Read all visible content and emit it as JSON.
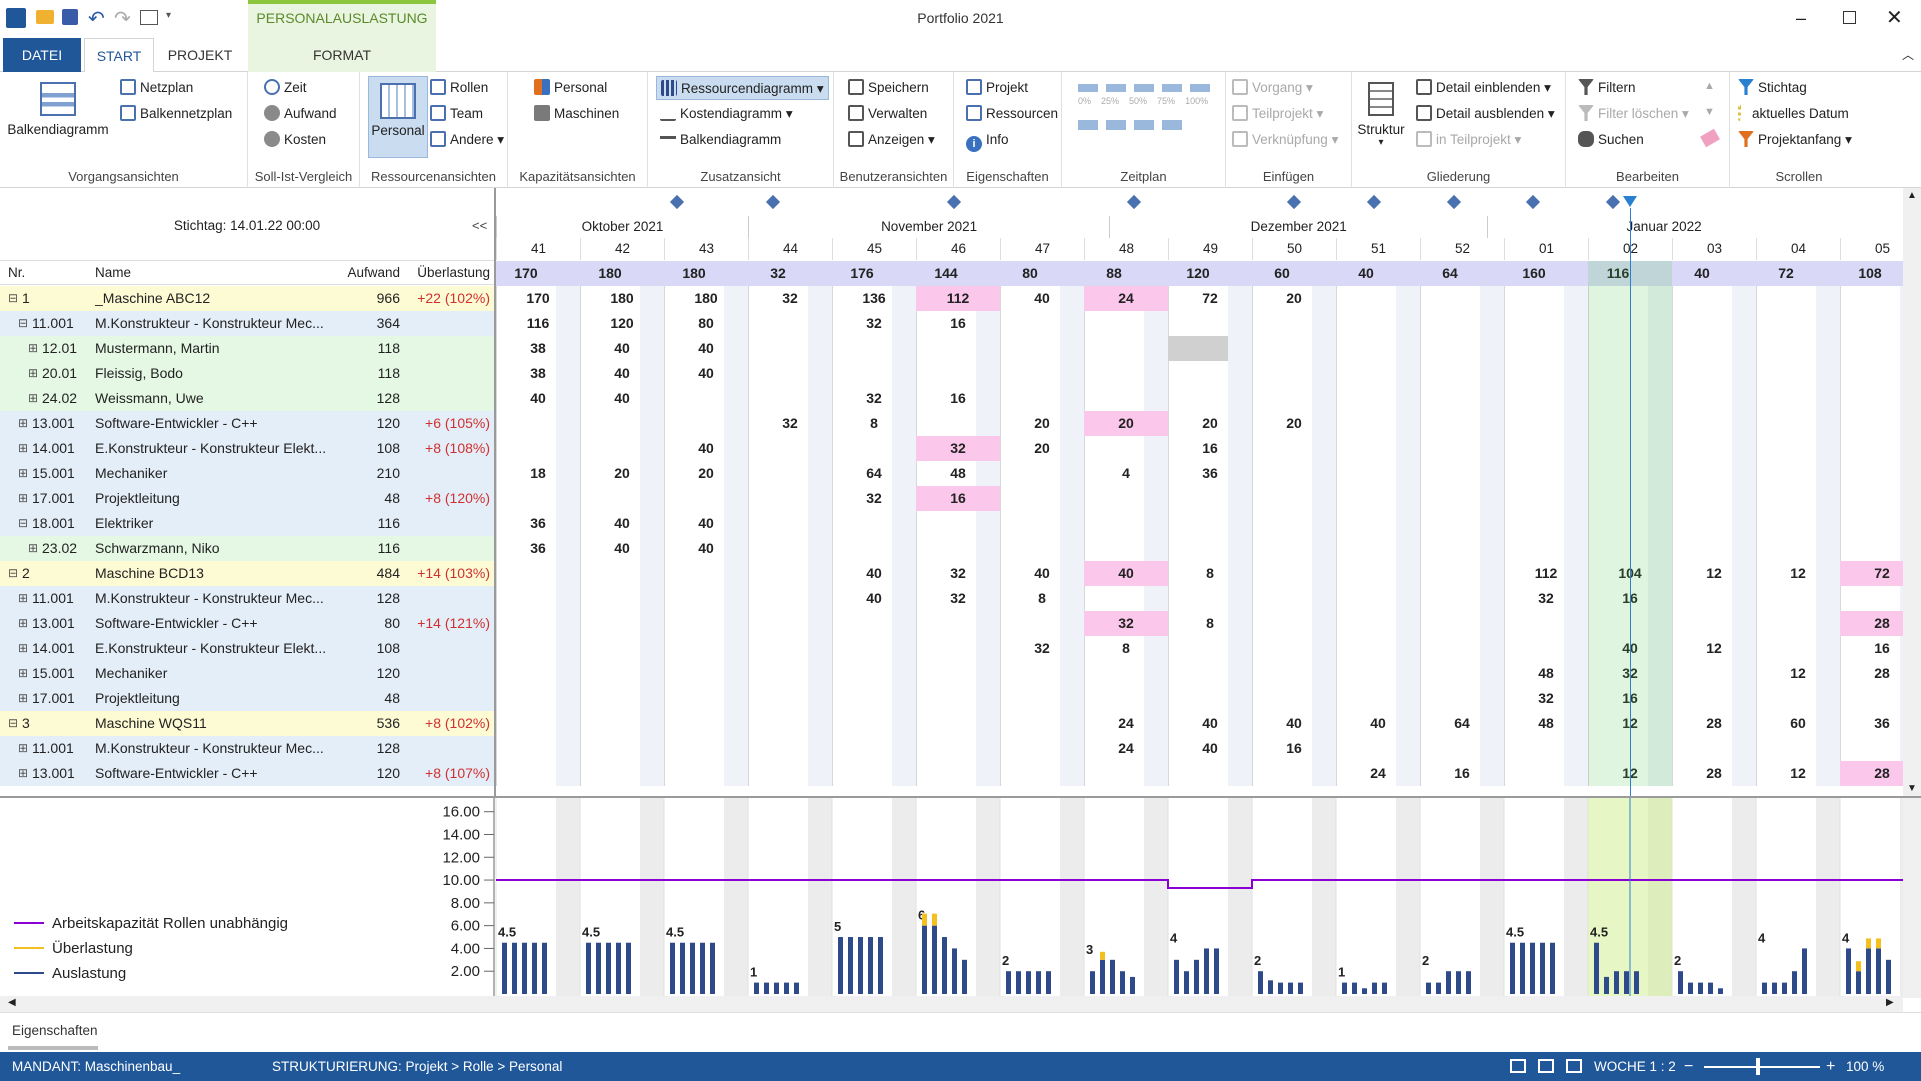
{
  "window": {
    "title": "Portfolio 2021",
    "context_tab": "PERSONALAUSLASTUNG"
  },
  "tabs": [
    {
      "label": "DATEI"
    },
    {
      "label": "START"
    },
    {
      "label": "PROJEKT"
    },
    {
      "label": "FORMAT"
    }
  ],
  "ribbon": {
    "vorgang": {
      "big": "Balkendiagramm",
      "items": [
        "Netzplan",
        "Balkennetzplan"
      ],
      "label": "Vorgangsansichten"
    },
    "sollist": {
      "items": [
        "Zeit",
        "Aufwand",
        "Kosten"
      ],
      "label": "Soll-Ist-Vergleich"
    },
    "ressourcen": {
      "big": "Personal",
      "items": [
        "Rollen",
        "Team",
        "Andere"
      ],
      "label": "Ressourcenansichten"
    },
    "kapazitaet": {
      "items": [
        "Personal",
        "Maschinen"
      ],
      "label": "Kapazitätsansichten"
    },
    "zusatz": {
      "items": [
        "Ressourcendiagramm",
        "Kostendiagramm",
        "Balkendiagramm"
      ],
      "label": "Zusatzansicht"
    },
    "benutzer": {
      "items": [
        "Speichern",
        "Verwalten",
        "Anzeigen"
      ],
      "label": "Benutzeransichten"
    },
    "eigenschaften": {
      "items": [
        "Projekt",
        "Ressourcen",
        "Info"
      ],
      "label": "Eigenschaften"
    },
    "zeitplan": {
      "pct": [
        "0%",
        "25%",
        "50%",
        "75%",
        "100%"
      ],
      "label": "Zeitplan"
    },
    "einfuegen": {
      "items": [
        "Vorgang",
        "Teilprojekt",
        "Verknüpfung"
      ],
      "label": "Einfügen"
    },
    "gliederung": {
      "big": "Struktur",
      "items": [
        "Detail einblenden",
        "Detail ausblenden",
        "in Teilprojekt"
      ],
      "label": "Gliederung"
    },
    "bearbeiten": {
      "items": [
        "Filtern",
        "Filter löschen",
        "Suchen"
      ],
      "label": "Bearbeiten"
    },
    "scrollen": {
      "items": [
        "Stichtag",
        "aktuelles Datum",
        "Projektanfang"
      ],
      "label": "Scrollen"
    }
  },
  "left": {
    "stichtag": "Stichtag: 14.01.22 00:00",
    "collapse": "<<",
    "headers": {
      "nr": "Nr.",
      "name": "Name",
      "aufwand": "Aufwand",
      "ueber": "Überlastung"
    },
    "rows": [
      {
        "nr": "1",
        "name": "_Maschine ABC12",
        "aufwand": "966",
        "ueber": "+22 (102%)",
        "lvl": 0,
        "type": "proj"
      },
      {
        "nr": "11.001",
        "name": "M.Konstrukteur - Konstrukteur Mec...",
        "aufwand": "364",
        "ueber": "",
        "lvl": 1,
        "type": "role",
        "open": true
      },
      {
        "nr": "12.01",
        "name": "Mustermann, Martin",
        "aufwand": "118",
        "ueber": "",
        "lvl": 2,
        "type": "pers"
      },
      {
        "nr": "20.01",
        "name": "Fleissig, Bodo",
        "aufwand": "118",
        "ueber": "",
        "lvl": 2,
        "type": "pers"
      },
      {
        "nr": "24.02",
        "name": "Weissmann, Uwe",
        "aufwand": "128",
        "ueber": "",
        "lvl": 2,
        "type": "pers"
      },
      {
        "nr": "13.001",
        "name": "Software-Entwickler - C++",
        "aufwand": "120",
        "ueber": "+6 (105%)",
        "lvl": 1,
        "type": "role"
      },
      {
        "nr": "14.001",
        "name": "E.Konstrukteur - Konstrukteur Elekt...",
        "aufwand": "108",
        "ueber": "+8 (108%)",
        "lvl": 1,
        "type": "role"
      },
      {
        "nr": "15.001",
        "name": "Mechaniker",
        "aufwand": "210",
        "ueber": "",
        "lvl": 1,
        "type": "role"
      },
      {
        "nr": "17.001",
        "name": "Projektleitung",
        "aufwand": "48",
        "ueber": "+8 (120%)",
        "lvl": 1,
        "type": "role"
      },
      {
        "nr": "18.001",
        "name": "Elektriker",
        "aufwand": "116",
        "ueber": "",
        "lvl": 1,
        "type": "role",
        "open": true
      },
      {
        "nr": "23.02",
        "name": "Schwarzmann, Niko",
        "aufwand": "116",
        "ueber": "",
        "lvl": 2,
        "type": "pers"
      },
      {
        "nr": "2",
        "name": "Maschine BCD13",
        "aufwand": "484",
        "ueber": "+14 (103%)",
        "lvl": 0,
        "type": "proj"
      },
      {
        "nr": "11.001",
        "name": "M.Konstrukteur - Konstrukteur Mec...",
        "aufwand": "128",
        "ueber": "",
        "lvl": 1,
        "type": "role"
      },
      {
        "nr": "13.001",
        "name": "Software-Entwickler - C++",
        "aufwand": "80",
        "ueber": "+14 (121%)",
        "lvl": 1,
        "type": "role"
      },
      {
        "nr": "14.001",
        "name": "E.Konstrukteur - Konstrukteur Elekt...",
        "aufwand": "108",
        "ueber": "",
        "lvl": 1,
        "type": "role"
      },
      {
        "nr": "15.001",
        "name": "Mechaniker",
        "aufwand": "120",
        "ueber": "",
        "lvl": 1,
        "type": "role"
      },
      {
        "nr": "17.001",
        "name": "Projektleitung",
        "aufwand": "48",
        "ueber": "",
        "lvl": 1,
        "type": "role"
      },
      {
        "nr": "3",
        "name": "Maschine WQS11",
        "aufwand": "536",
        "ueber": "+8 (102%)",
        "lvl": 0,
        "type": "proj"
      },
      {
        "nr": "11.001",
        "name": "M.Konstrukteur - Konstrukteur Mec...",
        "aufwand": "128",
        "ueber": "",
        "lvl": 1,
        "type": "role"
      },
      {
        "nr": "13.001",
        "name": "Software-Entwickler - C++",
        "aufwand": "120",
        "ueber": "+8 (107%)",
        "lvl": 1,
        "type": "role"
      }
    ]
  },
  "timeline": {
    "months": [
      {
        "label": "Oktober 2021",
        "start": 0,
        "span": 3
      },
      {
        "label": "November 2021",
        "start": 3,
        "span": 4.3
      },
      {
        "label": "Dezember 2021",
        "start": 7.3,
        "span": 4.5
      },
      {
        "label": "Januar 2022",
        "start": 11.8,
        "span": 4.2
      }
    ],
    "weeks": [
      "41",
      "42",
      "43",
      "44",
      "45",
      "46",
      "47",
      "48",
      "49",
      "50",
      "51",
      "52",
      "01",
      "02",
      "03",
      "04",
      "05"
    ],
    "totals": [
      "170",
      "180",
      "180",
      "32",
      "176",
      "144",
      "80",
      "88",
      "120",
      "60",
      "40",
      "64",
      "160",
      "116",
      "40",
      "72",
      "108"
    ],
    "rows": [
      [
        "170",
        "180",
        "180",
        "32",
        "136",
        "112",
        "40",
        "24",
        "72",
        "20",
        "",
        "",
        "",
        "",
        "",
        "",
        ""
      ],
      [
        "116",
        "120",
        "80",
        "",
        "32",
        "16",
        "",
        "",
        "",
        "",
        "",
        "",
        "",
        "",
        "",
        "",
        ""
      ],
      [
        "38",
        "40",
        "40",
        "",
        "",
        "",
        "",
        "",
        "",
        "",
        "",
        "",
        "",
        "",
        "",
        "",
        ""
      ],
      [
        "38",
        "40",
        "40",
        "",
        "",
        "",
        "",
        "",
        "",
        "",
        "",
        "",
        "",
        "",
        "",
        "",
        ""
      ],
      [
        "40",
        "40",
        "",
        "",
        "32",
        "16",
        "",
        "",
        "",
        "",
        "",
        "",
        "",
        "",
        "",
        "",
        ""
      ],
      [
        "",
        "",
        "",
        "32",
        "8",
        "",
        "20",
        "20",
        "20",
        "20",
        "",
        "",
        "",
        "",
        "",
        "",
        ""
      ],
      [
        "",
        "",
        "40",
        "",
        "",
        "32",
        "20",
        "",
        "16",
        "",
        "",
        "",
        "",
        "",
        "",
        "",
        ""
      ],
      [
        "18",
        "20",
        "20",
        "",
        "64",
        "48",
        "",
        "4",
        "36",
        "",
        "",
        "",
        "",
        "",
        "",
        "",
        ""
      ],
      [
        "",
        "",
        "",
        "",
        "32",
        "16",
        "",
        "",
        "",
        "",
        "",
        "",
        "",
        "",
        "",
        "",
        ""
      ],
      [
        "36",
        "40",
        "40",
        "",
        "",
        "",
        "",
        "",
        "",
        "",
        "",
        "",
        "",
        "",
        "",
        "",
        ""
      ],
      [
        "36",
        "40",
        "40",
        "",
        "",
        "",
        "",
        "",
        "",
        "",
        "",
        "",
        "",
        "",
        "",
        "",
        ""
      ],
      [
        "",
        "",
        "",
        "",
        "40",
        "32",
        "40",
        "40",
        "8",
        "",
        "",
        "",
        "112",
        "104",
        "12",
        "12",
        "72"
      ],
      [
        "",
        "",
        "",
        "",
        "40",
        "32",
        "8",
        "",
        "",
        "",
        "",
        "",
        "32",
        "16",
        "",
        "",
        ""
      ],
      [
        "",
        "",
        "",
        "",
        "",
        "",
        "",
        "32",
        "8",
        "",
        "",
        "",
        "",
        "",
        "",
        "",
        "28"
      ],
      [
        "",
        "",
        "",
        "",
        "",
        "",
        "32",
        "8",
        "",
        "",
        "",
        "",
        "",
        "40",
        "12",
        "",
        "16"
      ],
      [
        "",
        "",
        "",
        "",
        "",
        "",
        "",
        "",
        "",
        "",
        "",
        "",
        "48",
        "32",
        "",
        "12",
        "28"
      ],
      [
        "",
        "",
        "",
        "",
        "",
        "",
        "",
        "",
        "",
        "",
        "",
        "",
        "32",
        "16",
        "",
        "",
        ""
      ],
      [
        "",
        "",
        "",
        "",
        "",
        "",
        "",
        "24",
        "40",
        "40",
        "40",
        "64",
        "48",
        "12",
        "28",
        "60",
        "36"
      ],
      [
        "",
        "",
        "",
        "",
        "",
        "",
        "",
        "24",
        "40",
        "16",
        "",
        "",
        "",
        "",
        "",
        "",
        ""
      ],
      [
        "",
        "",
        "",
        "",
        "",
        "",
        "",
        "",
        "",
        "",
        "24",
        "16",
        "",
        "12",
        "28",
        "12",
        "28"
      ]
    ],
    "pink": [
      [
        0,
        5
      ],
      [
        0,
        7
      ],
      [
        5,
        7
      ],
      [
        6,
        5
      ],
      [
        8,
        5
      ],
      [
        11,
        7
      ],
      [
        11,
        16
      ],
      [
        13,
        7
      ],
      [
        13,
        16
      ],
      [
        19,
        16
      ]
    ],
    "milestones": [
      2.15,
      3.3,
      5.45,
      7.6,
      9.5,
      10.45,
      11.4,
      12.35,
      13.3
    ]
  },
  "chart_data": {
    "type": "bar",
    "yticks": [
      "16.00",
      "14.00",
      "12.00",
      "10.00",
      "8.00",
      "6.00",
      "4.00",
      "2.00"
    ],
    "ylim": [
      0,
      16.5
    ],
    "legend": [
      "Arbeitskapazität Rollen unabhängig",
      "Überlastung",
      "Auslastung"
    ],
    "colors": {
      "kapazitaet": "#8a00d4",
      "ueberlastung": "#f4c020",
      "auslastung": "#2e4a8a"
    },
    "capacity": [
      10,
      10,
      10,
      10,
      10,
      10,
      10,
      10,
      9.3,
      10,
      10,
      10,
      10,
      10,
      10,
      10,
      10
    ],
    "week_labels": [
      "4.5",
      "4.5",
      "4.5",
      "1",
      "5",
      "6",
      "2",
      "3",
      "4",
      "2",
      "1",
      "2",
      "4.5",
      "4.5",
      "2",
      "4",
      "4"
    ],
    "week_bars": [
      [
        4.5,
        4.5,
        4.5,
        4.5,
        4.5
      ],
      [
        4.5,
        4.5,
        4.5,
        4.5,
        4.5
      ],
      [
        4.5,
        4.5,
        4.5,
        4.5,
        4.5
      ],
      [
        1,
        1,
        1,
        1,
        1
      ],
      [
        5,
        5,
        5,
        5,
        5
      ],
      [
        6,
        6,
        5,
        4,
        3
      ],
      [
        2,
        2,
        2,
        2,
        2
      ],
      [
        2,
        3,
        3,
        2,
        1.5
      ],
      [
        3,
        2,
        3,
        4,
        4
      ],
      [
        2,
        1.2,
        1,
        1,
        1
      ],
      [
        1,
        1,
        0.5,
        1,
        1
      ],
      [
        1,
        1,
        2,
        2,
        2
      ],
      [
        4.5,
        4.5,
        4.5,
        4.5,
        4.5
      ],
      [
        4.5,
        1.5,
        2,
        2,
        2
      ],
      [
        2,
        1,
        1,
        1,
        0.5
      ],
      [
        1,
        1,
        1,
        2,
        4
      ],
      [
        4,
        2,
        4,
        4,
        3
      ]
    ],
    "overload": [
      [
        5,
        0,
        1.2
      ],
      [
        5,
        1,
        1.2
      ],
      [
        7,
        1,
        0.8
      ],
      [
        15,
        0,
        0
      ],
      [
        16,
        1,
        1
      ],
      [
        16,
        2,
        1
      ],
      [
        16,
        3,
        1
      ]
    ]
  },
  "props": {
    "label": "Eigenschaften"
  },
  "status": {
    "mandant": "MANDANT: Maschinenbau_",
    "struktur": "STRUKTURIERUNG: Projekt > Rolle > Personal",
    "woche": "WOCHE 1 : 2",
    "zoom": "100 %"
  }
}
